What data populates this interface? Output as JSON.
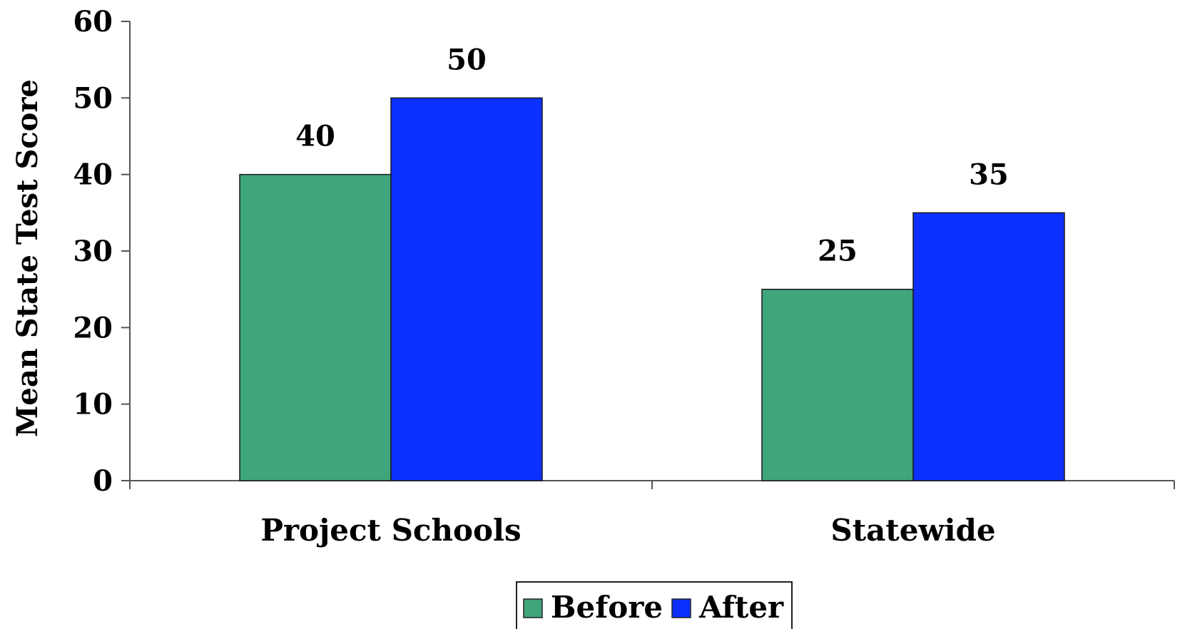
{
  "chart_data": {
    "type": "bar",
    "categories": [
      "Project Schools",
      "Statewide"
    ],
    "series": [
      {
        "name": "Before",
        "color": "#3fa57b",
        "values": [
          40,
          25
        ]
      },
      {
        "name": "After",
        "color": "#0c30ff",
        "values": [
          50,
          35
        ]
      }
    ],
    "data_labels": [
      [
        "40",
        "25"
      ],
      [
        "50",
        "35"
      ]
    ],
    "xlabel": "",
    "ylabel": "Mean State Test Score",
    "ylim": [
      0,
      60
    ],
    "yticks": [
      0,
      10,
      20,
      30,
      40,
      50,
      60
    ],
    "grid": false,
    "legend_position": "bottom-center"
  }
}
